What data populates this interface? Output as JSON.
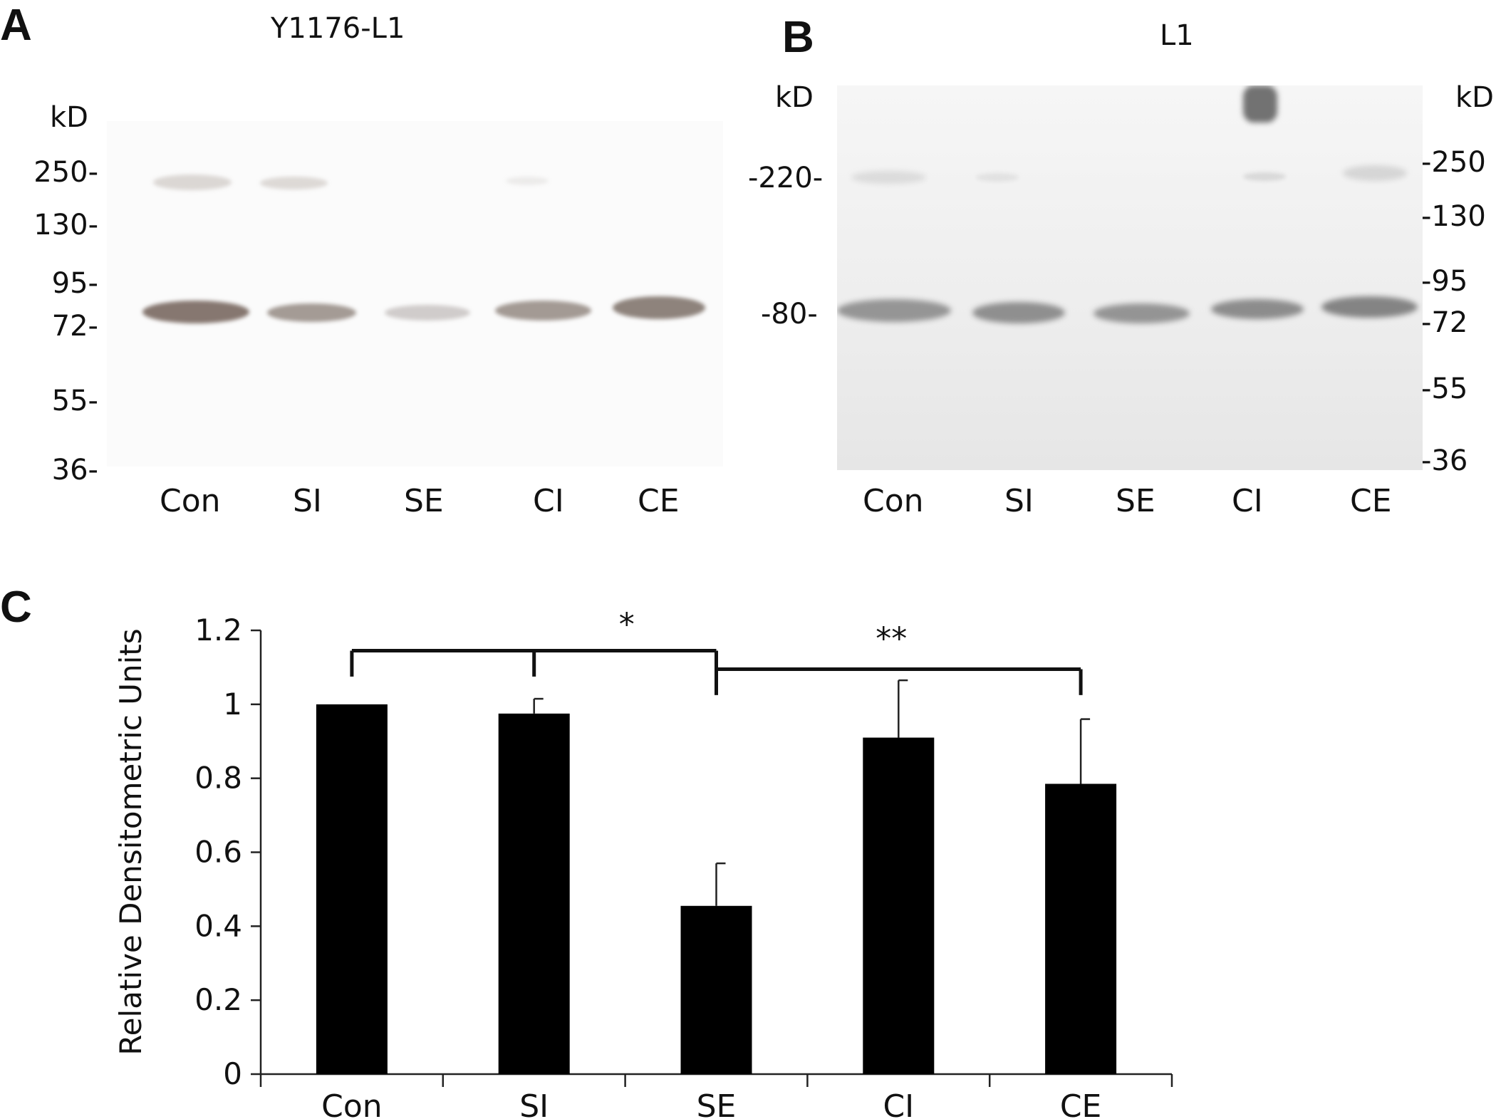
{
  "panels": {
    "a": {
      "letter": "A",
      "title": "Y1176-L1",
      "unit_label": "kD",
      "markers": [
        "250-",
        "130-",
        "95-",
        "72-",
        "55-",
        "36-"
      ],
      "lanes": [
        "Con",
        "SI",
        "SE",
        "CI",
        "CE"
      ]
    },
    "b": {
      "letter": "B",
      "title": "L1",
      "left_unit_label": "kD",
      "left_markers": [
        "-220-",
        "-80-"
      ],
      "right_unit_label": "kD",
      "right_markers": [
        "-250",
        "-130",
        "-95",
        "-72",
        "-55",
        "-36"
      ],
      "lanes": [
        "Con",
        "SI",
        "SE",
        "CI",
        "CE"
      ]
    },
    "c": {
      "letter": "C"
    }
  },
  "chart_data": {
    "type": "bar",
    "categories": [
      "Con",
      "SI",
      "SE",
      "CI",
      "CE"
    ],
    "values": [
      1.0,
      0.975,
      0.455,
      0.91,
      0.785
    ],
    "error": [
      0,
      0.04,
      0.115,
      0.155,
      0.175
    ],
    "ylabel": "Relative Densitometric Units",
    "xlabel": "",
    "ylim": [
      0,
      1.2
    ],
    "yticks": [
      0,
      0.2,
      0.4,
      0.6,
      0.8,
      1,
      1.2
    ],
    "ytick_labels": [
      "0",
      "0.2",
      "0.4",
      "0.6",
      "0.8",
      "1",
      "1.2"
    ],
    "bar_color": "#000000",
    "significance": [
      {
        "label": "*",
        "groups": [
          "Con",
          "SI",
          "SE"
        ]
      },
      {
        "label": "**",
        "groups": [
          "SE",
          "CE"
        ]
      }
    ]
  }
}
